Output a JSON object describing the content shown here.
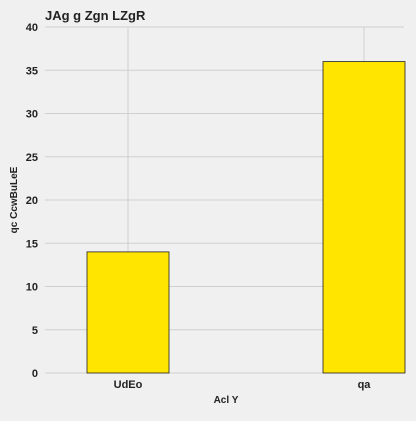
{
  "chart_data": {
    "type": "bar",
    "title": "JAg g Zgn LZgR",
    "xlabel": "Acl Y",
    "ylabel": "qc CcwBuLeE",
    "categories": [
      "UdEo",
      "qa"
    ],
    "values": [
      14,
      36
    ],
    "ylim": [
      0,
      40
    ],
    "yticks": [
      0,
      5,
      10,
      15,
      20,
      25,
      30,
      35,
      40
    ],
    "grid": true,
    "bar_color": "#ffe500",
    "background_color": "#f0f0f0"
  }
}
